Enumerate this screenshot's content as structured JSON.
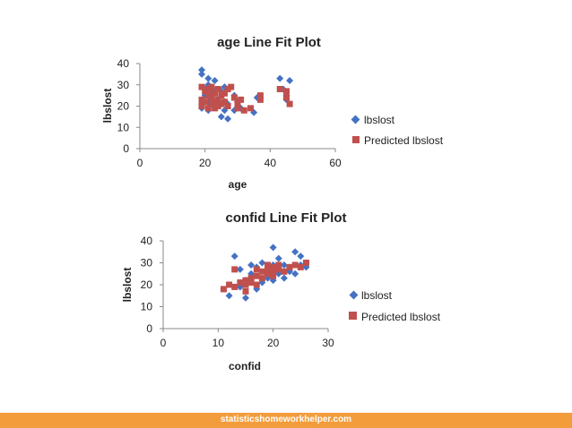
{
  "colors": {
    "series1": "#4472C4",
    "series2": "#C0504D",
    "footer": "#f39c3c"
  },
  "footer": {
    "text": "statisticshomeworkhelper.com"
  },
  "chart_data": [
    {
      "type": "scatter",
      "title": "age Line Fit  Plot",
      "xlabel": "age",
      "ylabel": "lbslost",
      "xlim": [
        0,
        60
      ],
      "ylim": [
        0,
        40
      ],
      "xticks": [
        0,
        20,
        40,
        60
      ],
      "yticks": [
        0,
        10,
        20,
        30,
        40
      ],
      "legend_position": "right",
      "series": [
        {
          "name": "lbslost",
          "marker": "diamond",
          "points": [
            [
              19,
              37
            ],
            [
              19,
              35
            ],
            [
              19,
              21
            ],
            [
              19,
              19
            ],
            [
              20,
              28
            ],
            [
              20,
              25
            ],
            [
              21,
              33
            ],
            [
              21,
              30
            ],
            [
              21,
              22
            ],
            [
              21,
              18
            ],
            [
              22,
              29
            ],
            [
              22,
              26
            ],
            [
              22,
              24
            ],
            [
              23,
              32
            ],
            [
              23,
              27
            ],
            [
              23,
              21
            ],
            [
              24,
              23
            ],
            [
              24,
              20
            ],
            [
              25,
              15
            ],
            [
              25,
              27
            ],
            [
              26,
              29
            ],
            [
              26,
              22
            ],
            [
              26,
              18
            ],
            [
              27,
              14
            ],
            [
              27,
              21
            ],
            [
              29,
              25
            ],
            [
              29,
              18
            ],
            [
              30,
              22
            ],
            [
              31,
              19
            ],
            [
              35,
              17
            ],
            [
              36,
              24
            ],
            [
              43,
              33
            ],
            [
              44,
              28
            ],
            [
              45,
              23
            ],
            [
              45,
              25
            ],
            [
              46,
              32
            ]
          ]
        },
        {
          "name": "Predicted lbslost",
          "marker": "square",
          "points": [
            [
              19,
              29
            ],
            [
              19,
              23
            ],
            [
              19,
              20
            ],
            [
              20,
              27
            ],
            [
              20,
              22
            ],
            [
              21,
              28
            ],
            [
              21,
              25
            ],
            [
              21,
              19
            ],
            [
              22,
              29
            ],
            [
              22,
              24
            ],
            [
              22,
              21
            ],
            [
              23,
              26
            ],
            [
              23,
              22
            ],
            [
              23,
              19
            ],
            [
              24,
              28
            ],
            [
              24,
              23
            ],
            [
              24,
              20
            ],
            [
              25,
              25
            ],
            [
              25,
              21
            ],
            [
              26,
              26
            ],
            [
              26,
              22
            ],
            [
              27,
              28
            ],
            [
              27,
              20
            ],
            [
              28,
              29
            ],
            [
              29,
              24
            ],
            [
              30,
              21
            ],
            [
              30,
              19
            ],
            [
              31,
              23
            ],
            [
              32,
              18
            ],
            [
              34,
              19
            ],
            [
              37,
              25
            ],
            [
              37,
              23
            ],
            [
              43,
              28
            ],
            [
              45,
              24
            ],
            [
              45,
              27
            ],
            [
              46,
              21
            ]
          ]
        }
      ]
    },
    {
      "type": "scatter",
      "title": "confid Line Fit  Plot",
      "xlabel": "confid",
      "ylabel": "lbslost",
      "xlim": [
        0,
        30
      ],
      "ylim": [
        0,
        40
      ],
      "xticks": [
        0,
        10,
        20,
        30
      ],
      "yticks": [
        0,
        10,
        20,
        30,
        40
      ],
      "legend_position": "right",
      "series": [
        {
          "name": "lbslost",
          "marker": "diamond",
          "points": [
            [
              12,
              15
            ],
            [
              13,
              33
            ],
            [
              14,
              27
            ],
            [
              14,
              19
            ],
            [
              15,
              14
            ],
            [
              15,
              22
            ],
            [
              16,
              29
            ],
            [
              16,
              25
            ],
            [
              17,
              18
            ],
            [
              17,
              28
            ],
            [
              18,
              30
            ],
            [
              18,
              21
            ],
            [
              19,
              26
            ],
            [
              19,
              23
            ],
            [
              20,
              37
            ],
            [
              20,
              29
            ],
            [
              20,
              22
            ],
            [
              21,
              32
            ],
            [
              21,
              27
            ],
            [
              21,
              25
            ],
            [
              22,
              23
            ],
            [
              22,
              29
            ],
            [
              23,
              28
            ],
            [
              23,
              26
            ],
            [
              24,
              35
            ],
            [
              24,
              25
            ],
            [
              25,
              33
            ],
            [
              25,
              29
            ],
            [
              26,
              28
            ],
            [
              26,
              30
            ]
          ]
        },
        {
          "name": "Predicted lbslost",
          "marker": "square",
          "points": [
            [
              11,
              18
            ],
            [
              12,
              20
            ],
            [
              13,
              19
            ],
            [
              13,
              27
            ],
            [
              14,
              21
            ],
            [
              15,
              22
            ],
            [
              15,
              17
            ],
            [
              15,
              20
            ],
            [
              16,
              21
            ],
            [
              16,
              23
            ],
            [
              17,
              27
            ],
            [
              17,
              24
            ],
            [
              17,
              20
            ],
            [
              18,
              26
            ],
            [
              18,
              23
            ],
            [
              19,
              27
            ],
            [
              19,
              25
            ],
            [
              19,
              29
            ],
            [
              20,
              28
            ],
            [
              20,
              26
            ],
            [
              20,
              24
            ],
            [
              21,
              29
            ],
            [
              21,
              27
            ],
            [
              22,
              26
            ],
            [
              23,
              28
            ],
            [
              24,
              29
            ],
            [
              25,
              28
            ],
            [
              26,
              30
            ]
          ]
        }
      ]
    }
  ]
}
